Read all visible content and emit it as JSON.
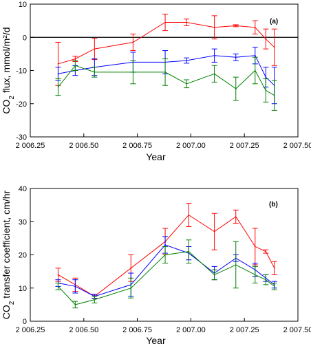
{
  "chart_data": [
    {
      "type": "line",
      "panel_label": "(a)",
      "xlabel": "Year",
      "ylabel_main": "CO",
      "ylabel_sub": "2",
      "ylabel_rest": " flux, mmol/m²/d",
      "xlim": [
        2006.25,
        2007.5
      ],
      "ylim": [
        -30,
        10
      ],
      "x_ticks": [
        2006.25,
        2006.5,
        2006.75,
        2007.0,
        2007.25,
        2007.5
      ],
      "x_tick_labels": [
        "2 006.25",
        "2 006.50",
        "2 006.75",
        "2 007.00",
        "2 007.25",
        "2 007.50"
      ],
      "y_ticks": [
        -30,
        -20,
        -10,
        0,
        10
      ],
      "y_tick_labels": [
        "-30",
        "-20",
        "-10",
        "0",
        "10"
      ],
      "zero_line": 0,
      "series": [
        {
          "color": "#ff0000",
          "x": [
            2006.38,
            2006.46,
            2006.55,
            2006.73,
            2006.88,
            2006.98,
            2007.11,
            2007.21,
            2007.3,
            2007.35,
            2007.39
          ],
          "y": [
            -8,
            -6.5,
            -3.5,
            -1.5,
            4.5,
            4.5,
            3,
            3.5,
            3,
            -0.5,
            -3
          ],
          "err": [
            6.5,
            0.8,
            3.2,
            2.5,
            2.5,
            1.0,
            3.5,
            0.3,
            2.0,
            3.0,
            5.5
          ]
        },
        {
          "color": "#0000ff",
          "x": [
            2006.38,
            2006.46,
            2006.55,
            2006.73,
            2006.88,
            2006.98,
            2007.11,
            2007.21,
            2007.3,
            2007.35,
            2007.39
          ],
          "y": [
            -11,
            -10,
            -9,
            -7.5,
            -7.5,
            -7,
            -5.5,
            -6,
            -5.5,
            -12,
            -14.5
          ],
          "err": [
            2.0,
            1.5,
            2.5,
            3.0,
            3.5,
            0.8,
            2.0,
            1.0,
            2.5,
            3.0,
            5.5
          ]
        },
        {
          "color": "#008000",
          "x": [
            2006.38,
            2006.46,
            2006.55,
            2006.73,
            2006.88,
            2006.98,
            2007.11,
            2007.21,
            2007.3,
            2007.35,
            2007.39
          ],
          "y": [
            -15,
            -8.5,
            -10.5,
            -10.5,
            -10.5,
            -14,
            -11,
            -15.5,
            -10,
            -16,
            -17.5
          ],
          "err": [
            2.5,
            1.5,
            1.5,
            3.5,
            4.0,
            1.2,
            2.5,
            3.5,
            4.0,
            3.5,
            4.5
          ]
        }
      ]
    },
    {
      "type": "line",
      "panel_label": "(b)",
      "xlabel": "Year",
      "ylabel_main": "CO",
      "ylabel_sub": "2",
      "ylabel_rest": " transfer coefficient, cm/hr",
      "xlim": [
        2006.25,
        2007.5
      ],
      "ylim": [
        0,
        40
      ],
      "x_ticks": [
        2006.25,
        2006.5,
        2006.75,
        2007.0,
        2007.25,
        2007.5
      ],
      "x_tick_labels": [
        "2 006.25",
        "2 006.50",
        "2 006.75",
        "2 007.00",
        "2 007.25",
        "2 007.50"
      ],
      "y_ticks": [
        0,
        10,
        20,
        30,
        40
      ],
      "y_tick_labels": [
        "0",
        "10",
        "20",
        "30",
        "40"
      ],
      "series": [
        {
          "color": "#ff0000",
          "x": [
            2006.38,
            2006.46,
            2006.55,
            2006.72,
            2006.88,
            2006.99,
            2007.11,
            2007.21,
            2007.3,
            2007.35,
            2007.39
          ],
          "y": [
            14,
            11,
            7.5,
            16,
            24,
            32,
            27,
            31.5,
            22.5,
            21,
            16
          ],
          "err": [
            2.0,
            2.0,
            0.6,
            4.0,
            4.0,
            3.5,
            5.5,
            2.0,
            5.5,
            0.5,
            2.0
          ]
        },
        {
          "color": "#0000ff",
          "x": [
            2006.38,
            2006.46,
            2006.55,
            2006.72,
            2006.88,
            2006.99,
            2007.11,
            2007.21,
            2007.3,
            2007.35,
            2007.39
          ],
          "y": [
            11.5,
            10.5,
            7.5,
            11,
            23,
            20.5,
            14.5,
            19,
            15.5,
            13,
            11
          ],
          "err": [
            1.0,
            2.0,
            0.6,
            3.5,
            2.5,
            2.0,
            2.0,
            1.0,
            2.0,
            1.0,
            1.0
          ]
        },
        {
          "color": "#008000",
          "x": [
            2006.38,
            2006.46,
            2006.55,
            2006.72,
            2006.88,
            2006.99,
            2007.11,
            2007.21,
            2007.3,
            2007.35,
            2007.39
          ],
          "y": [
            10.5,
            5,
            6.5,
            10,
            20,
            21,
            14,
            17,
            14,
            12.5,
            10.5
          ],
          "err": [
            1.0,
            1.0,
            1.0,
            3.0,
            2.5,
            3.5,
            1.5,
            7.0,
            2.5,
            1.5,
            1.0
          ]
        }
      ]
    }
  ]
}
